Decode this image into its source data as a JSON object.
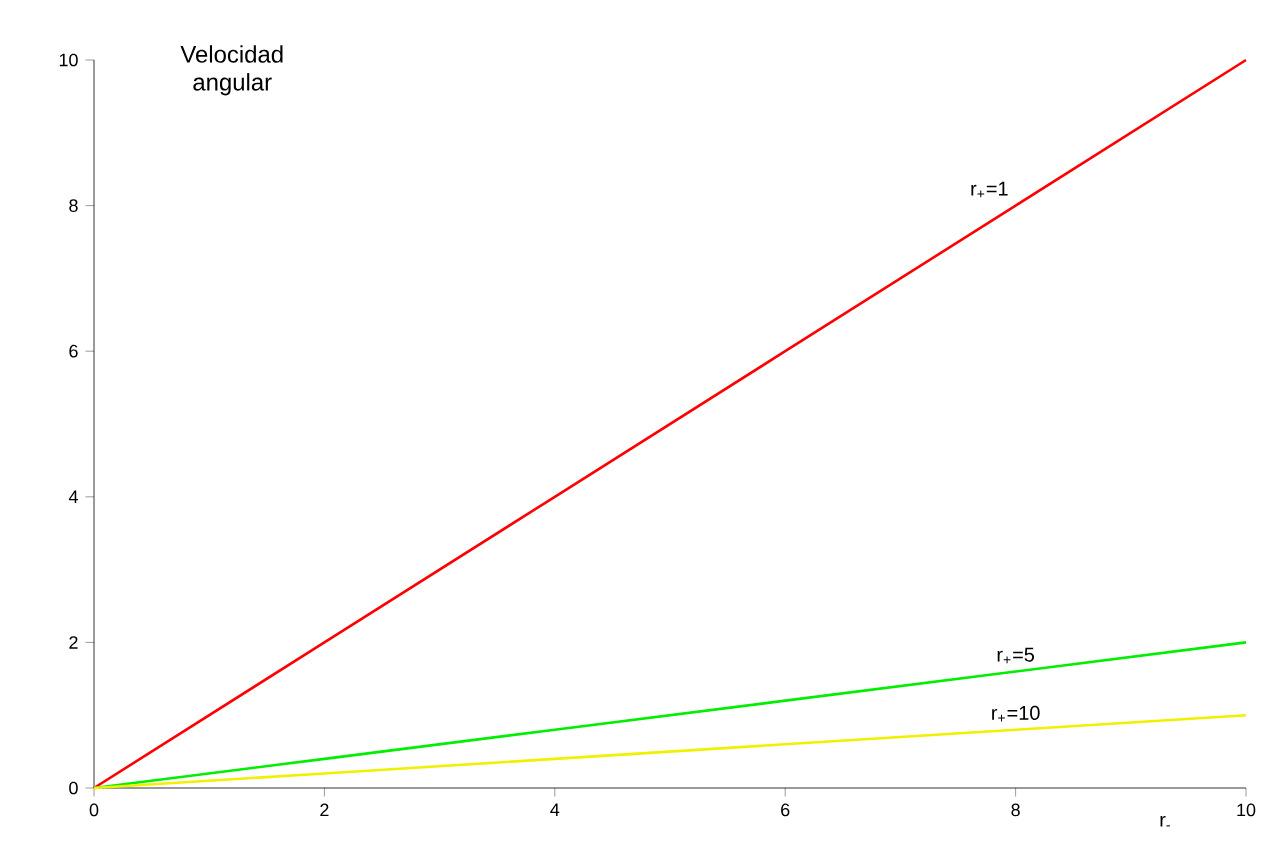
{
  "chart_data": {
    "type": "line",
    "title": "Velocidad angular",
    "xlabel": "r$_{-}$",
    "xlim": [
      0,
      10
    ],
    "ylim": [
      0,
      10
    ],
    "xticks": [
      0,
      2,
      4,
      6,
      8,
      10
    ],
    "yticks": [
      0,
      2,
      4,
      6,
      8,
      10
    ],
    "x": [
      0,
      2,
      4,
      6,
      8,
      10
    ],
    "series": [
      {
        "name": "r$_{+}$=1",
        "color": "#ff0000",
        "values": [
          0,
          2,
          4,
          6,
          8,
          10
        ]
      },
      {
        "name": "r$_{+}$=5",
        "color": "#00ee00",
        "values": [
          0,
          0.4,
          0.8,
          1.2,
          1.6,
          2
        ]
      },
      {
        "name": "r$_{+}$=10",
        "color": "#f0f000",
        "values": [
          0,
          0.2,
          0.4,
          0.6,
          0.8,
          1
        ]
      }
    ]
  }
}
